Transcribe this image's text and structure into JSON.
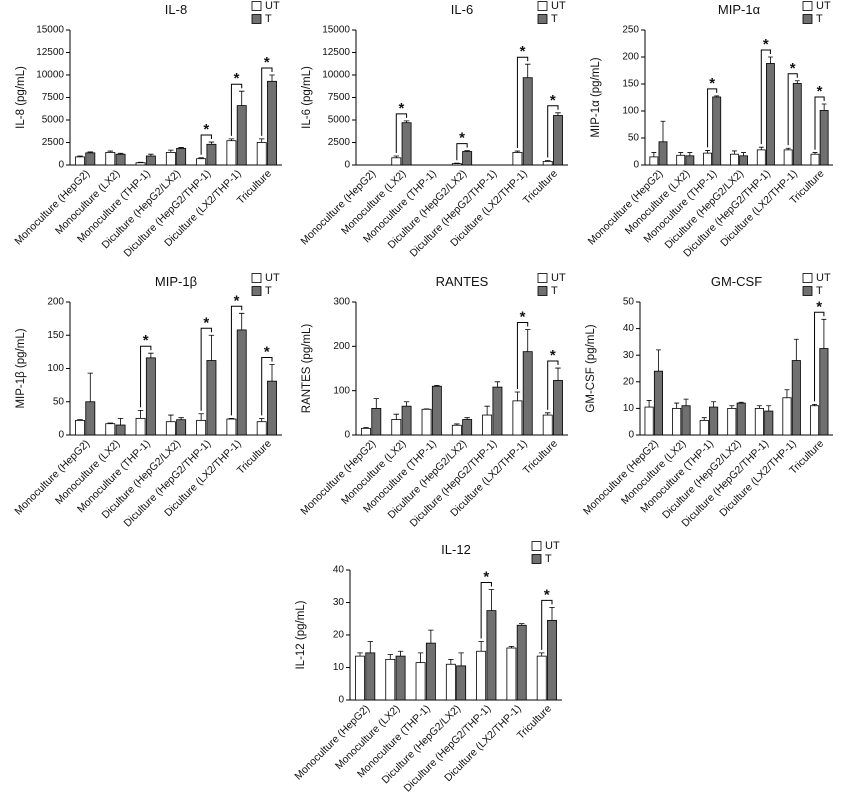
{
  "chart_data": [
    {
      "type": "bar",
      "title": "IL-8",
      "y_label": "IL-8 (pg/mL)",
      "categories": [
        "Monoculture (HepG2)",
        "Monoculture (LX2)",
        "Monoculture (THP-1)",
        "Diculture (HepG2/LX2)",
        "Diculture (HepG2/THP-1)",
        "Diculture (LX2/THP-1)",
        "Triculture"
      ],
      "series": [
        {
          "name": "UT",
          "color": "#ffffff",
          "values": [
            900,
            1400,
            250,
            1400,
            700,
            2700,
            2500
          ],
          "errors": [
            100,
            150,
            50,
            250,
            100,
            200,
            400
          ]
        },
        {
          "name": "T",
          "color": "#707070",
          "values": [
            1350,
            1200,
            1000,
            1850,
            2300,
            6600,
            9300
          ],
          "errors": [
            100,
            100,
            200,
            100,
            250,
            1600,
            700
          ]
        }
      ],
      "ylim": [
        0,
        15000
      ],
      "yticks": [
        0,
        2500,
        5000,
        7500,
        10000,
        12500,
        15000
      ],
      "annotations": [
        {
          "category": "Diculture (HepG2/THP-1)",
          "text": "*"
        },
        {
          "category": "Diculture (LX2/THP-1)",
          "text": "*"
        },
        {
          "category": "Triculture",
          "text": "*"
        }
      ]
    },
    {
      "type": "bar",
      "title": "IL-6",
      "y_label": "IL-6 (pg/mL)",
      "categories": [
        "Monoculture (HepG2)",
        "Monoculture (LX2)",
        "Monoculture (THP-1)",
        "Diculture (HepG2/LX2)",
        "Diculture (HepG2/THP-1)",
        "Diculture (LX2/THP-1)",
        "Triculture"
      ],
      "series": [
        {
          "name": "UT",
          "color": "#ffffff",
          "values": [
            0,
            800,
            0,
            150,
            0,
            1400,
            400
          ],
          "errors": [
            0,
            200,
            0,
            50,
            0,
            150,
            100
          ]
        },
        {
          "name": "T",
          "color": "#707070",
          "values": [
            0,
            4700,
            0,
            1500,
            0,
            9700,
            5500
          ],
          "errors": [
            0,
            200,
            0,
            100,
            0,
            1500,
            300
          ]
        }
      ],
      "ylim": [
        0,
        15000
      ],
      "yticks": [
        0,
        2500,
        5000,
        7500,
        10000,
        12500,
        15000
      ],
      "annotations": [
        {
          "category": "Monoculture (LX2)",
          "text": "*"
        },
        {
          "category": "Diculture (HepG2/LX2)",
          "text": "*"
        },
        {
          "category": "Diculture (LX2/THP-1)",
          "text": "*"
        },
        {
          "category": "Triculture",
          "text": "*"
        }
      ]
    },
    {
      "type": "bar",
      "title": "MIP-1α",
      "y_label": "MIP-1α (pg/mL)",
      "categories": [
        "Monoculture (HepG2)",
        "Monoculture (LX2)",
        "Monoculture (THP-1)",
        "Diculture (HepG2/LX2)",
        "Diculture (HepG2/THP-1)",
        "Diculture (LX2/THP-1)",
        "Triculture"
      ],
      "series": [
        {
          "name": "UT",
          "color": "#ffffff",
          "values": [
            15,
            18,
            22,
            20,
            28,
            28,
            20
          ],
          "errors": [
            8,
            5,
            5,
            6,
            5,
            3,
            3
          ]
        },
        {
          "name": "T",
          "color": "#707070",
          "values": [
            43,
            17,
            126,
            17,
            188,
            151,
            101
          ],
          "errors": [
            38,
            6,
            2,
            6,
            12,
            5,
            12
          ]
        }
      ],
      "ylim": [
        0,
        250
      ],
      "yticks": [
        0,
        50,
        100,
        150,
        200,
        250
      ],
      "annotations": [
        {
          "category": "Monoculture (THP-1)",
          "text": "*"
        },
        {
          "category": "Diculture (HepG2/THP-1)",
          "text": "*"
        },
        {
          "category": "Diculture (LX2/THP-1)",
          "text": "*"
        },
        {
          "category": "Triculture",
          "text": "*"
        }
      ]
    },
    {
      "type": "bar",
      "title": "MIP-1β",
      "y_label": "MIP-1β (pg/mL)",
      "categories": [
        "Monoculture (HepG2)",
        "Monoculture (LX2)",
        "Monoculture (THP-1)",
        "Diculture (HepG2/LX2)",
        "Diculture (HepG2/THP-1)",
        "Diculture (LX2/THP-1)",
        "Triculture"
      ],
      "series": [
        {
          "name": "UT",
          "color": "#ffffff",
          "values": [
            22,
            17,
            25,
            20,
            22,
            24,
            20
          ],
          "errors": [
            1,
            1,
            12,
            10,
            10,
            1,
            5
          ]
        },
        {
          "name": "T",
          "color": "#707070",
          "values": [
            50,
            15,
            116,
            23,
            112,
            158,
            81
          ],
          "errors": [
            43,
            10,
            7,
            3,
            38,
            25,
            25
          ]
        }
      ],
      "ylim": [
        0,
        200
      ],
      "yticks": [
        0,
        50,
        100,
        150,
        200
      ],
      "annotations": [
        {
          "category": "Monoculture (THP-1)",
          "text": "*"
        },
        {
          "category": "Diculture (HepG2/THP-1)",
          "text": "*"
        },
        {
          "category": "Diculture (LX2/THP-1)",
          "text": "*"
        },
        {
          "category": "Triculture",
          "text": "*"
        }
      ]
    },
    {
      "type": "bar",
      "title": "RANTES",
      "y_label": "RANTES (pg/mL)",
      "categories": [
        "Monoculture (HepG2)",
        "Monoculture (LX2)",
        "Monoculture (THP-1)",
        "Diculture (HepG2/LX2)",
        "Diculture (HepG2/THP-1)",
        "Diculture (LX2/THP-1)",
        "Triculture"
      ],
      "series": [
        {
          "name": "UT",
          "color": "#ffffff",
          "values": [
            15,
            35,
            58,
            22,
            45,
            77,
            45
          ],
          "errors": [
            2,
            12,
            1,
            3,
            20,
            20,
            5
          ]
        },
        {
          "name": "T",
          "color": "#707070",
          "values": [
            60,
            65,
            110,
            35,
            108,
            188,
            123
          ],
          "errors": [
            22,
            10,
            2,
            4,
            12,
            50,
            28
          ]
        }
      ],
      "ylim": [
        0,
        300
      ],
      "yticks": [
        0,
        100,
        200,
        300
      ],
      "annotations": [
        {
          "category": "Diculture (LX2/THP-1)",
          "text": "*"
        },
        {
          "category": "Triculture",
          "text": "*"
        }
      ]
    },
    {
      "type": "bar",
      "title": "GM-CSF",
      "y_label": "GM-CSF (pg/mL)",
      "categories": [
        "Monoculture (HepG2)",
        "Monoculture (LX2)",
        "Monoculture (THP-1)",
        "Diculture (HepG2/LX2)",
        "Diculture (HepG2/THP-1)",
        "Diculture (LX2/THP-1)",
        "Triculture"
      ],
      "series": [
        {
          "name": "UT",
          "color": "#ffffff",
          "values": [
            10.5,
            10,
            5.5,
            10,
            10,
            14,
            11
          ],
          "errors": [
            2.5,
            2,
            1,
            1,
            1,
            3,
            0.5
          ]
        },
        {
          "name": "T",
          "color": "#707070",
          "values": [
            24,
            11,
            10.5,
            12,
            9,
            28,
            32.5
          ],
          "errors": [
            8,
            2.5,
            2,
            0.3,
            2,
            8,
            11
          ]
        }
      ],
      "ylim": [
        0,
        50
      ],
      "yticks": [
        0,
        10,
        20,
        30,
        40,
        50
      ],
      "annotations": [
        {
          "category": "Triculture",
          "text": "*"
        }
      ]
    },
    {
      "type": "bar",
      "title": "IL-12",
      "y_label": "IL-12 (pg/mL)",
      "categories": [
        "Monoculture (HepG2)",
        "Monoculture (LX2)",
        "Monoculture (THP-1)",
        "Diculture (HepG2/LX2)",
        "Diculture (HepG2/THP-1)",
        "Diculture (LX2/THP-1)",
        "Triculture"
      ],
      "series": [
        {
          "name": "UT",
          "color": "#ffffff",
          "values": [
            13.5,
            12.5,
            11.5,
            11,
            15,
            16,
            13.5
          ],
          "errors": [
            1,
            1.5,
            3,
            1.5,
            3,
            0.5,
            1
          ]
        },
        {
          "name": "T",
          "color": "#707070",
          "values": [
            14.5,
            13.5,
            17.5,
            10.5,
            27.5,
            23,
            24.5
          ],
          "errors": [
            3.5,
            1.5,
            4,
            4,
            6.5,
            0.5,
            4
          ]
        }
      ],
      "ylim": [
        0,
        40
      ],
      "yticks": [
        0,
        10,
        20,
        30,
        40
      ],
      "annotations": [
        {
          "category": "Diculture (HepG2/THP-1)",
          "text": "*"
        },
        {
          "category": "Triculture",
          "text": "*"
        }
      ]
    }
  ]
}
